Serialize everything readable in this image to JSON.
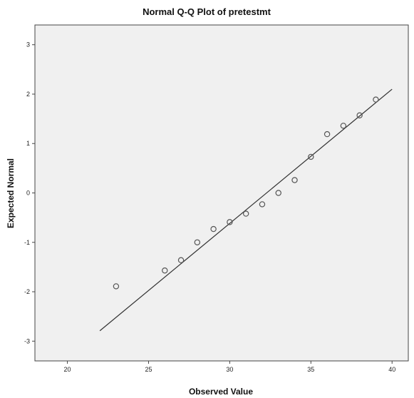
{
  "chart_data": {
    "type": "scatter",
    "title": "Normal Q-Q Plot of pretestmt",
    "xlabel": "Observed Value",
    "ylabel": "Expected Normal",
    "xlim": [
      18,
      41
    ],
    "ylim": [
      -3.4,
      3.4
    ],
    "xticks": [
      20,
      25,
      30,
      35,
      40
    ],
    "yticks": [
      3,
      2,
      1,
      0,
      -1,
      -2,
      -3
    ],
    "grid": false,
    "colors": {
      "plot_background": "#f0f0f0",
      "marker": "#555555",
      "line": "#333333"
    },
    "points": [
      {
        "x": 23,
        "y": -1.89
      },
      {
        "x": 26,
        "y": -1.57
      },
      {
        "x": 27,
        "y": -1.36
      },
      {
        "x": 28,
        "y": -1.0
      },
      {
        "x": 29,
        "y": -0.73
      },
      {
        "x": 30,
        "y": -0.59
      },
      {
        "x": 31,
        "y": -0.42
      },
      {
        "x": 32,
        "y": -0.23
      },
      {
        "x": 33,
        "y": 0.0
      },
      {
        "x": 34,
        "y": 0.26
      },
      {
        "x": 35,
        "y": 0.73
      },
      {
        "x": 36,
        "y": 1.19
      },
      {
        "x": 37,
        "y": 1.36
      },
      {
        "x": 38,
        "y": 1.57
      },
      {
        "x": 39,
        "y": 1.89
      }
    ],
    "reference_line": {
      "x": [
        22,
        40
      ],
      "y": [
        -2.79,
        2.1
      ]
    }
  }
}
